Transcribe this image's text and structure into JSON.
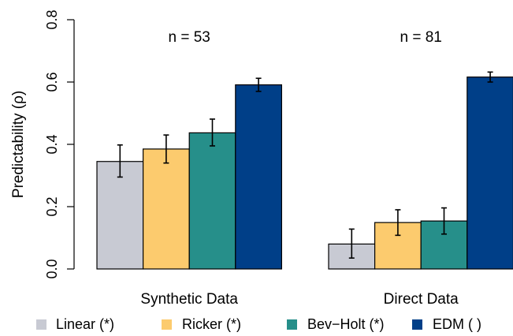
{
  "chart_data": {
    "type": "bar",
    "ylabel": "Predictability (ρ)",
    "ylim": [
      0,
      0.8
    ],
    "yticks": [
      0.0,
      0.2,
      0.4,
      0.6,
      0.8
    ],
    "ytick_labels": [
      "0.0",
      "0.2",
      "0.4",
      "0.6",
      "0.8"
    ],
    "grid": false,
    "legend_position": "bottom",
    "groups": [
      {
        "label": "Synthetic Data",
        "annotation": "n = 53",
        "values": [
          0.345,
          0.385,
          0.437,
          0.591
        ],
        "err_low": [
          0.295,
          0.34,
          0.395,
          0.57
        ],
        "err_high": [
          0.398,
          0.43,
          0.481,
          0.612
        ]
      },
      {
        "label": "Direct Data",
        "annotation": "n = 81",
        "values": [
          0.08,
          0.149,
          0.154,
          0.616
        ],
        "err_low": [
          0.035,
          0.108,
          0.112,
          0.6
        ],
        "err_high": [
          0.128,
          0.19,
          0.196,
          0.632
        ]
      }
    ],
    "series": [
      {
        "name": "Linear (*)",
        "color": "#c8cad3"
      },
      {
        "name": "Ricker (*)",
        "color": "#fccb6e"
      },
      {
        "name": "Bev−Holt (*)",
        "color": "#268f8a"
      },
      {
        "name": "EDM ( )",
        "color": "#003f88"
      }
    ]
  }
}
